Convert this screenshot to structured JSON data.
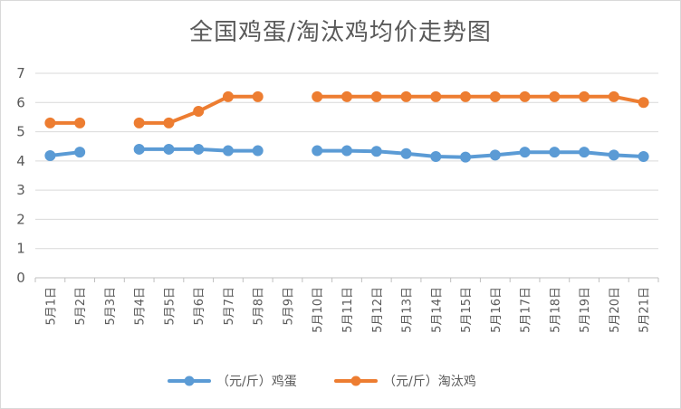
{
  "chart_data": {
    "type": "line",
    "title": "全国鸡蛋/淘汰鸡均价走势图",
    "categories": [
      "5月1日",
      "5月2日",
      "5月3日",
      "5月4日",
      "5月5日",
      "5月6日",
      "5月7日",
      "5月8日",
      "5月9日",
      "5月10日",
      "5月11日",
      "5月12日",
      "5月13日",
      "5月14日",
      "5月15日",
      "5月16日",
      "5月17日",
      "5月18日",
      "5月19日",
      "5月20日",
      "5月21日"
    ],
    "ylim": [
      0,
      7
    ],
    "yticks": [
      "0",
      "1",
      "2",
      "3",
      "4",
      "5",
      "6",
      "7"
    ],
    "grid": true,
    "legend_position": "bottom",
    "series": [
      {
        "name": "（元/斤）鸡蛋",
        "color": "#5b9bd5",
        "values": [
          4.18,
          4.3,
          null,
          4.4,
          4.4,
          4.4,
          4.35,
          4.35,
          null,
          4.35,
          4.35,
          4.33,
          4.25,
          4.15,
          4.13,
          4.2,
          4.3,
          4.3,
          4.3,
          4.2,
          4.15
        ]
      },
      {
        "name": "（元/斤）淘汰鸡",
        "color": "#ed7d31",
        "values": [
          5.3,
          5.3,
          null,
          5.3,
          5.3,
          5.7,
          6.2,
          6.2,
          null,
          6.2,
          6.2,
          6.2,
          6.2,
          6.2,
          6.2,
          6.2,
          6.2,
          6.2,
          6.2,
          6.2,
          6.0
        ]
      }
    ]
  }
}
